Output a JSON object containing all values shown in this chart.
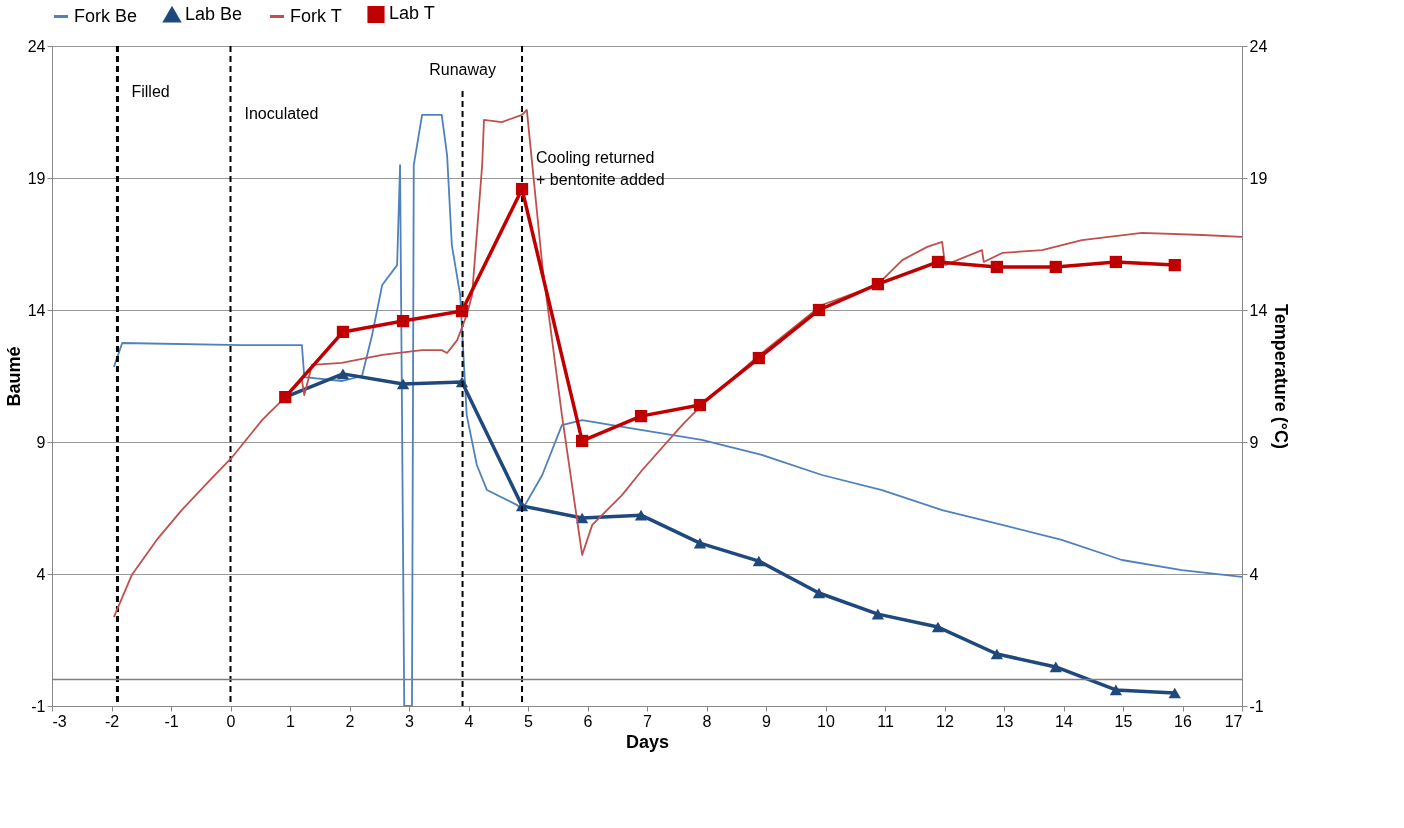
{
  "chart_data": {
    "type": "line",
    "xlabel": "Days",
    "ylabel": "Baumé",
    "y2label": "Temperature (°C)",
    "xlim": [
      -3,
      17
    ],
    "xticks": [
      -3,
      -2,
      -1,
      0,
      1,
      2,
      3,
      4,
      5,
      6,
      7,
      8,
      9,
      10,
      11,
      12,
      13,
      14,
      15,
      16,
      17
    ],
    "ylim": [
      -1,
      24
    ],
    "yticks": [
      -1,
      4,
      9,
      14,
      19,
      24
    ],
    "y2lim": [
      -1,
      24
    ],
    "y2ticks": [
      -1,
      4,
      9,
      14,
      19,
      24
    ],
    "grid": "y",
    "legend": "top",
    "series": [
      {
        "name": "Fork Be",
        "color": "#4f81bd",
        "marker": "none",
        "x": [
          -1.96,
          -1.82,
          0.19,
          1.2,
          1.24,
          1.87,
          2.21,
          2.38,
          2.55,
          2.8,
          2.85,
          2.92,
          3.05,
          3.08,
          3.22,
          3.55,
          3.64,
          3.72,
          3.86,
          3.97,
          4.14,
          4.31,
          4.82,
          4.9,
          5.24,
          5.57,
          5.91,
          6.92,
          7.92,
          8.93,
          9.94,
          10.95,
          11.96,
          12.97,
          13.97,
          14.98,
          15.99,
          17.0
        ],
        "values": [
          11.84,
          12.75,
          12.67,
          12.67,
          11.46,
          11.31,
          11.5,
          13.05,
          14.95,
          15.7,
          19.49,
          -1,
          -1,
          19.49,
          21.39,
          21.39,
          19.87,
          16.46,
          14.57,
          10.02,
          8.13,
          7.18,
          6.61,
          6.42,
          7.75,
          9.64,
          9.83,
          9.45,
          9.08,
          8.51,
          7.75,
          7.18,
          6.42,
          5.86,
          5.29,
          4.53,
          4.15,
          3.89
        ]
      },
      {
        "name": "Lab Be",
        "color": "#1f497d",
        "marker": "triangle",
        "x": [
          0.92,
          1.89,
          2.9,
          3.89,
          4.9,
          5.91,
          6.9,
          7.89,
          8.88,
          9.89,
          10.88,
          11.89,
          12.88,
          13.87,
          14.88,
          15.87
        ],
        "values": [
          10.7,
          11.58,
          11.2,
          11.27,
          6.58,
          6.12,
          6.23,
          5.17,
          4.49,
          3.28,
          2.48,
          1.99,
          0.97,
          0.48,
          -0.39,
          -0.51
        ]
      },
      {
        "name": "Fork T",
        "color": "#c0504d",
        "marker": "none",
        "axis": "y2",
        "x": [
          -1.96,
          -1.66,
          -1.24,
          -0.82,
          -0.31,
          0.03,
          0.53,
          0.92,
          1.2,
          1.24,
          1.37,
          1.87,
          2.55,
          3.22,
          3.55,
          3.64,
          3.81,
          3.97,
          4.06,
          4.23,
          4.26,
          4.56,
          4.9,
          4.98,
          5.24,
          5.57,
          5.91,
          6.08,
          6.58,
          6.92,
          7.59,
          7.92,
          8.93,
          9.94,
          10.87,
          11.29,
          11.71,
          11.96,
          12.01,
          12.63,
          12.66,
          12.97,
          13.64,
          14.31,
          15.32,
          16.33,
          17.0
        ],
        "values": [
          2.37,
          3.96,
          5.29,
          6.42,
          7.64,
          8.43,
          9.83,
          10.7,
          11.35,
          10.78,
          11.92,
          12.0,
          12.3,
          12.48,
          12.48,
          12.37,
          12.86,
          13.81,
          14.57,
          19.49,
          21.2,
          21.12,
          21.39,
          21.58,
          15.7,
          10.02,
          4.72,
          5.86,
          6.99,
          7.94,
          9.64,
          10.4,
          12.37,
          14.19,
          14.95,
          15.89,
          16.39,
          16.58,
          15.7,
          16.27,
          15.82,
          16.16,
          16.27,
          16.65,
          16.92,
          16.84,
          16.77
        ]
      },
      {
        "name": "Lab T",
        "color": "#c00000",
        "marker": "square",
        "axis": "y2",
        "x": [
          0.92,
          1.89,
          2.9,
          3.89,
          4.9,
          5.91,
          6.9,
          7.89,
          8.88,
          9.89,
          10.88,
          11.89,
          12.88,
          13.87,
          14.88,
          15.87
        ],
        "values": [
          10.7,
          13.17,
          13.58,
          13.96,
          18.58,
          9.04,
          9.98,
          10.4,
          12.18,
          14.0,
          14.98,
          15.82,
          15.63,
          15.63,
          15.82,
          15.7
        ]
      }
    ],
    "ref_lines": [
      {
        "axis": "x",
        "value": -1.9,
        "label": "Filled",
        "color": "#000000",
        "line_style": "dashed"
      },
      {
        "axis": "x",
        "value": 0,
        "label": "Inoculated",
        "color": "#000000",
        "line_style": "dashed"
      },
      {
        "axis": "x",
        "value": 3.9,
        "label": "Runaway",
        "color": "#000000",
        "line_style": "dashed"
      },
      {
        "axis": "x",
        "value": 4.9,
        "label": "Cooling returned\n   + bentonite added",
        "color": "#000000",
        "line_style": "dashed"
      },
      {
        "axis": "y",
        "value": 0,
        "label": null,
        "color": "#808080",
        "line_style": "solid"
      }
    ]
  }
}
